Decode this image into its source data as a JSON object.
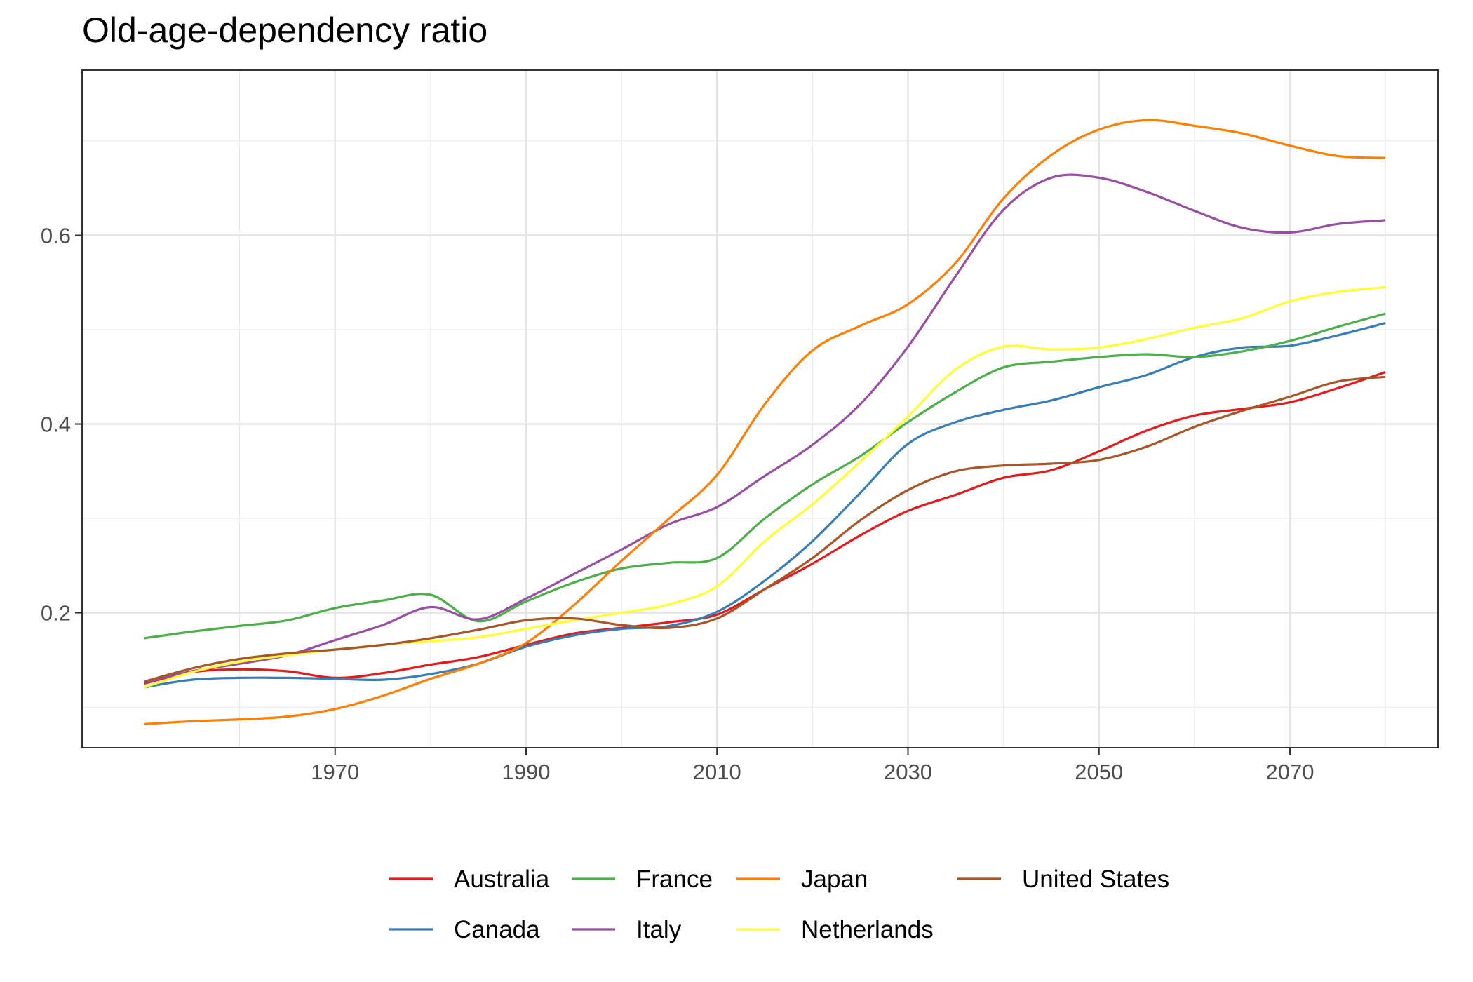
{
  "chart_data": {
    "type": "line",
    "title": "Old-age-dependency ratio",
    "xlabel": "",
    "ylabel": "",
    "xlim": [
      1943.5,
      2085.5
    ],
    "ylim": [
      0.057,
      0.775
    ],
    "x_ticks": [
      1970,
      1990,
      2010,
      2030,
      2050,
      2070
    ],
    "y_ticks": [
      0.2,
      0.4,
      0.6
    ],
    "y_tick_labels": [
      "0.2",
      "0.4",
      "0.6"
    ],
    "grid": true,
    "legend_position": "bottom",
    "x": [
      1950,
      1955,
      1960,
      1965,
      1970,
      1975,
      1980,
      1985,
      1990,
      1995,
      2000,
      2005,
      2010,
      2015,
      2020,
      2025,
      2030,
      2035,
      2040,
      2045,
      2050,
      2055,
      2060,
      2065,
      2070,
      2075,
      2080
    ],
    "series": [
      {
        "name": "Australia",
        "color": "#E41A1C",
        "values": [
          0.125,
          0.137,
          0.14,
          0.138,
          0.131,
          0.136,
          0.145,
          0.153,
          0.166,
          0.178,
          0.184,
          0.19,
          0.198,
          0.225,
          0.252,
          0.282,
          0.308,
          0.325,
          0.343,
          0.351,
          0.371,
          0.393,
          0.409,
          0.416,
          0.423,
          0.438,
          0.455
        ]
      },
      {
        "name": "Canada",
        "color": "#377EB8",
        "values": [
          0.121,
          0.129,
          0.131,
          0.131,
          0.13,
          0.129,
          0.135,
          0.146,
          0.164,
          0.176,
          0.183,
          0.186,
          0.201,
          0.234,
          0.276,
          0.327,
          0.379,
          0.402,
          0.415,
          0.425,
          0.439,
          0.452,
          0.471,
          0.481,
          0.483,
          0.494,
          0.507
        ]
      },
      {
        "name": "France",
        "color": "#4DAF4A",
        "values": [
          0.173,
          0.18,
          0.186,
          0.192,
          0.205,
          0.213,
          0.219,
          0.191,
          0.212,
          0.232,
          0.247,
          0.253,
          0.258,
          0.3,
          0.336,
          0.366,
          0.402,
          0.434,
          0.46,
          0.466,
          0.471,
          0.474,
          0.471,
          0.477,
          0.488,
          0.503,
          0.517
        ]
      },
      {
        "name": "Italy",
        "color": "#984EA3",
        "values": [
          0.126,
          0.138,
          0.146,
          0.155,
          0.171,
          0.187,
          0.206,
          0.193,
          0.215,
          0.241,
          0.267,
          0.294,
          0.312,
          0.345,
          0.378,
          0.421,
          0.482,
          0.557,
          0.627,
          0.661,
          0.661,
          0.646,
          0.626,
          0.608,
          0.603,
          0.612,
          0.616
        ]
      },
      {
        "name": "Japan",
        "color": "#FF7F00",
        "values": [
          0.082,
          0.085,
          0.087,
          0.09,
          0.098,
          0.112,
          0.13,
          0.146,
          0.168,
          0.208,
          0.255,
          0.3,
          0.346,
          0.421,
          0.478,
          0.504,
          0.527,
          0.571,
          0.639,
          0.685,
          0.712,
          0.722,
          0.716,
          0.708,
          0.695,
          0.684,
          0.682
        ]
      },
      {
        "name": "Netherlands",
        "color": "#FFFF33",
        "values": [
          0.121,
          0.137,
          0.148,
          0.155,
          0.161,
          0.166,
          0.17,
          0.174,
          0.183,
          0.192,
          0.2,
          0.209,
          0.228,
          0.276,
          0.315,
          0.36,
          0.408,
          0.458,
          0.482,
          0.479,
          0.481,
          0.49,
          0.502,
          0.512,
          0.53,
          0.54,
          0.545
        ]
      },
      {
        "name": "United States",
        "color": "#A65628",
        "values": [
          0.127,
          0.141,
          0.151,
          0.157,
          0.161,
          0.166,
          0.173,
          0.182,
          0.192,
          0.194,
          0.187,
          0.184,
          0.194,
          0.225,
          0.258,
          0.298,
          0.33,
          0.35,
          0.356,
          0.358,
          0.362,
          0.376,
          0.397,
          0.414,
          0.429,
          0.445,
          0.45
        ]
      }
    ]
  }
}
